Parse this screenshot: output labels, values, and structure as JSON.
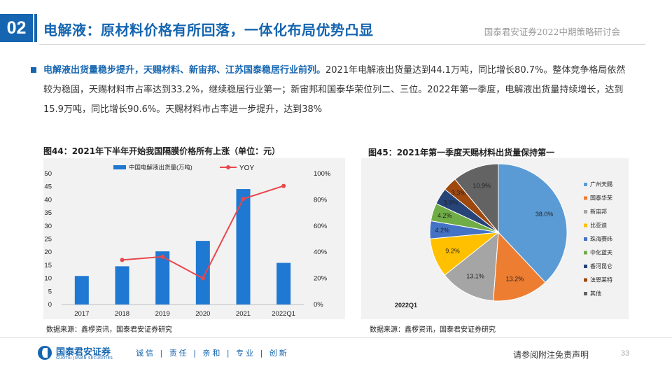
{
  "header": {
    "section_number": "02",
    "title": "电解液：原材料价格有所回落，一体化布局优势凸显",
    "org_event": "国泰君安证券2022中期策略研讨会"
  },
  "summary": {
    "highlight": "电解液出货量稳步提升，天赐材料、新宙邦、江苏国泰稳居行业前列。",
    "body": "2021年电解液出货量达到44.1万吨，同比增长80.7%。整体竞争格局依然较为稳固，天赐材料市占率达到33.2%，继续稳居行业第一；新宙邦和国泰华荣位列二、三位。2022年第一季度，电解液出货量持续增长，达到15.9万吨，同比增长90.6%。天赐材料市占率进一步提升，达到38%"
  },
  "figure44": {
    "title": "图44：2021年下半年开始我国隔膜价格所有上涨（单位：元）",
    "source": "数据来源：鑫椤资讯，国泰君安证券研究"
  },
  "figure45": {
    "title": "图45：2021年第一季度天赐材料出货量保持第一",
    "source": "数据来源：鑫椤资讯，国泰君安证券研究"
  },
  "chart_data": [
    {
      "type": "bar",
      "categories": [
        "2017",
        "2018",
        "2019",
        "2020",
        "2021",
        "2022Q1"
      ],
      "series": [
        {
          "name": "中国电解液出货量(万吨)",
          "type": "bar",
          "axis": "left",
          "color": "#1f78d1",
          "values": [
            10.9,
            14.6,
            20.3,
            24.3,
            44.1,
            15.9
          ]
        },
        {
          "name": "YOY",
          "type": "line",
          "axis": "right",
          "color": "#e8474c",
          "values": [
            null,
            34.0,
            36.5,
            20.0,
            80.7,
            90.6
          ]
        }
      ],
      "ylim_left": [
        0,
        50
      ],
      "yticks_left": [
        "0",
        "5",
        "10",
        "15",
        "20",
        "25",
        "30",
        "35",
        "40",
        "45",
        "50"
      ],
      "ylim_right": [
        0,
        100
      ],
      "yticks_right": [
        "0%",
        "20%",
        "40%",
        "60%",
        "80%",
        "100%"
      ],
      "legend_position": "top",
      "grid": false
    },
    {
      "type": "pie",
      "caption": "2022Q1",
      "labels": [
        "广州天赐",
        "国泰华荣",
        "新宙邦",
        "比亚迪",
        "珠海赛纬",
        "中化蓝天",
        "香河昆仑",
        "法恩莱特",
        "其他"
      ],
      "values": [
        38.0,
        13.2,
        13.1,
        9.2,
        4.2,
        4.2,
        3.9,
        3.3,
        10.9
      ],
      "value_labels": [
        "38.0%",
        "13.2%",
        "13.1%",
        "9.2%",
        "4.2%",
        "4.2%",
        "3.9%",
        "3.3%",
        "10.9%"
      ],
      "colors": [
        "#5b9bd5",
        "#ed7d31",
        "#a5a5a5",
        "#ffc000",
        "#4472c4",
        "#70ad47",
        "#264478",
        "#9e480e",
        "#636363"
      ],
      "legend_position": "right"
    }
  ],
  "footer": {
    "logo_cn": "国泰君安证券",
    "logo_en": "GUOTAI JUNAN SECURITIES",
    "slogan": "诚信 | 责任 | 亲和 | 专业 | 创新",
    "disclaimer": "请参阅附注免责声明",
    "page_number": "33"
  }
}
